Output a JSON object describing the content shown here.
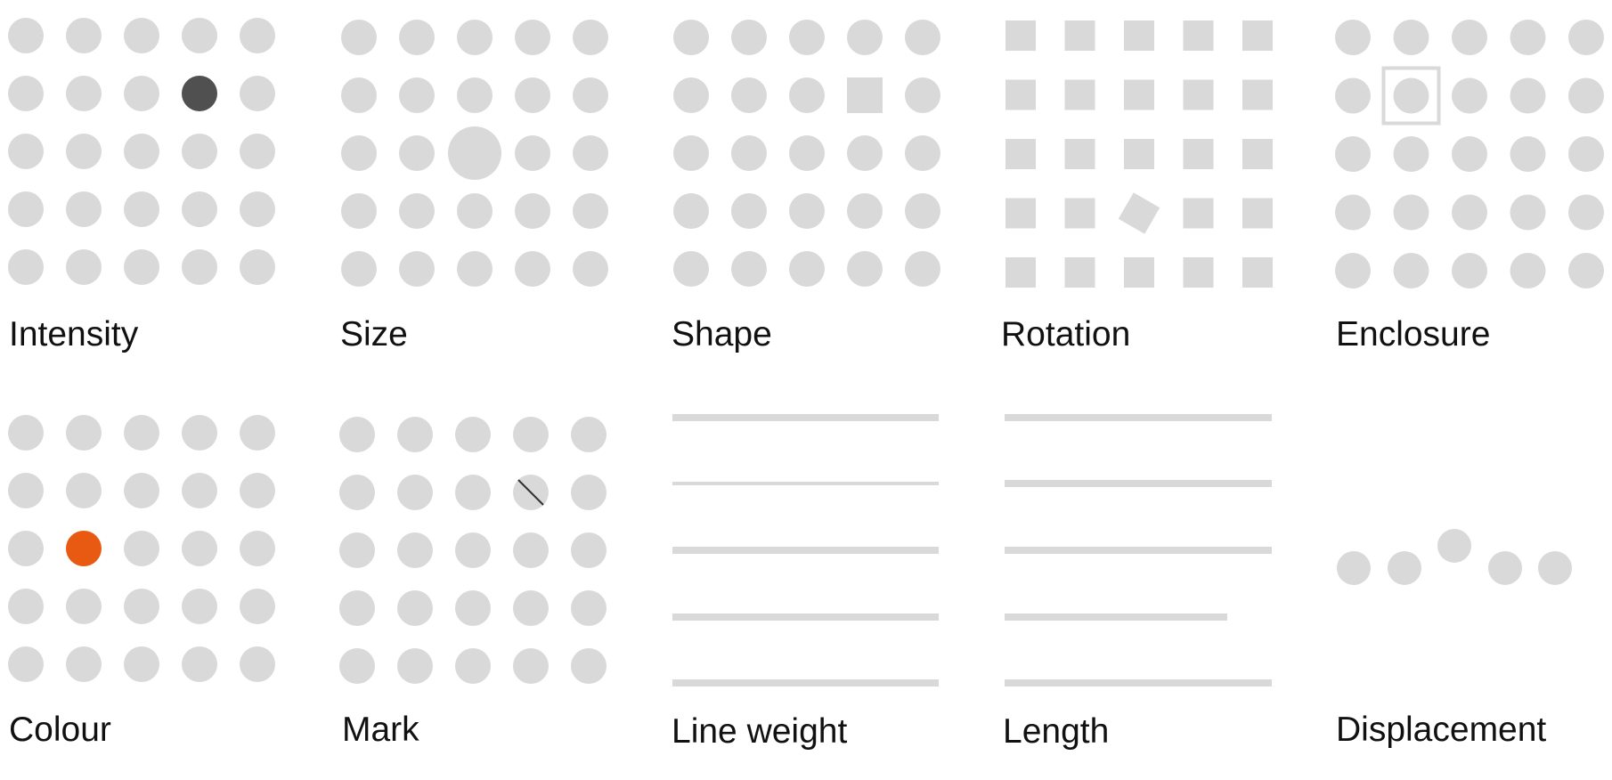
{
  "colors": {
    "base": "#d9d9d9",
    "intensity_highlight": "#505050",
    "colour_highlight": "#e85a12",
    "mark_line": "#333333",
    "label_text": "#111111"
  },
  "panels": [
    {
      "id": "intensity",
      "label": "Intensity",
      "kind": "dot-grid",
      "odd_cell": {
        "row": 1,
        "col": 3,
        "variant": "dark-fill"
      }
    },
    {
      "id": "size",
      "label": "Size",
      "kind": "dot-grid",
      "odd_cell": {
        "row": 2,
        "col": 2,
        "variant": "larger-circle"
      }
    },
    {
      "id": "shape",
      "label": "Shape",
      "kind": "dot-grid",
      "odd_cell": {
        "row": 1,
        "col": 3,
        "variant": "square"
      }
    },
    {
      "id": "rotation",
      "label": "Rotation",
      "kind": "square-grid",
      "odd_cell": {
        "row": 3,
        "col": 2,
        "variant": "rotated-square"
      }
    },
    {
      "id": "enclosure",
      "label": "Enclosure",
      "kind": "dot-grid",
      "odd_cell": {
        "row": 1,
        "col": 1,
        "variant": "enclosed"
      }
    },
    {
      "id": "colour",
      "label": "Colour",
      "kind": "dot-grid",
      "odd_cell": {
        "row": 2,
        "col": 1,
        "variant": "orange-fill"
      }
    },
    {
      "id": "mark",
      "label": "Mark",
      "kind": "dot-grid",
      "odd_cell": {
        "row": 1,
        "col": 3,
        "variant": "slash-mark"
      }
    },
    {
      "id": "line-weight",
      "label": "Line weight",
      "kind": "lines",
      "odd_line": {
        "index": 1,
        "variant": "thinner"
      }
    },
    {
      "id": "length",
      "label": "Length",
      "kind": "lines",
      "odd_line": {
        "index": 3,
        "variant": "shorter"
      }
    },
    {
      "id": "displacement",
      "label": "Displacement",
      "kind": "dot-row",
      "odd_dot": {
        "index": 2,
        "variant": "raised"
      }
    }
  ]
}
